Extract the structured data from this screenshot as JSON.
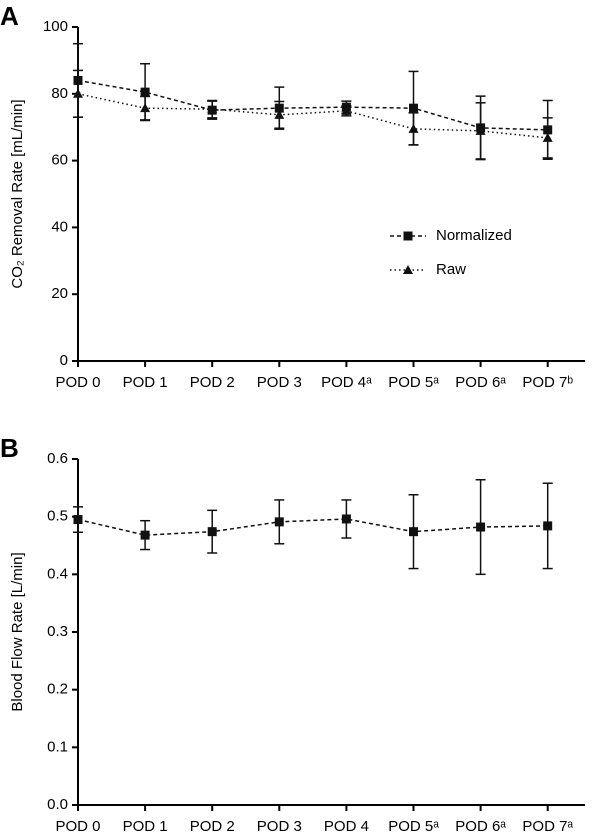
{
  "chart_data": [
    {
      "type": "line",
      "panel_label": "A",
      "ylabel": "CO₂ Removal Rate [mL/min]",
      "categories": [
        "POD 0",
        "POD 1",
        "POD 2",
        "POD 3",
        "POD 4ᵃ",
        "POD 5ᵃ",
        "POD 6ᵃ",
        "POD 7ᵇ"
      ],
      "ylim": [
        0,
        100
      ],
      "yticks": [
        0,
        20,
        40,
        60,
        80,
        100
      ],
      "legend": true,
      "legend_position": "center-right",
      "series": [
        {
          "name": "Normalized",
          "color": "#111111",
          "linestyle": "dashed",
          "marker": "square",
          "values": [
            84,
            80.5,
            75.1,
            75.7,
            76,
            75.7,
            69.8,
            69.2
          ],
          "errors": [
            11,
            8.5,
            2.7,
            6.3,
            1.8,
            11,
            9.5,
            8.8
          ]
        },
        {
          "name": "Raw",
          "color": "#111111",
          "linestyle": "dotted",
          "marker": "triangle",
          "values": [
            80,
            75.7,
            75.4,
            73.7,
            74.9,
            69.5,
            68.9,
            66.8
          ],
          "errors": [
            7,
            3.5,
            2.6,
            4,
            1.5,
            4.8,
            8.4,
            6
          ]
        }
      ]
    },
    {
      "type": "line",
      "panel_label": "B",
      "ylabel": "Blood Flow Rate [L/min]",
      "categories": [
        "POD 0",
        "POD 1",
        "POD 2",
        "POD 3",
        "POD 4",
        "POD 5ᵃ",
        "POD 6ᵃ",
        "POD 7ᵃ"
      ],
      "ylim": [
        0,
        0.6
      ],
      "yticks": [
        {
          "value": 0,
          "label": "0.0"
        },
        0.1,
        0.2,
        0.3,
        0.4,
        0.5,
        0.6
      ],
      "legend": false,
      "series": [
        {
          "color": "#111111",
          "linestyle": "dashed",
          "marker": "square",
          "values": [
            0.495,
            0.468,
            0.474,
            0.491,
            0.496,
            0.474,
            0.482,
            0.484
          ],
          "errors": [
            0.022,
            0.025,
            0.037,
            0.038,
            0.033,
            0.064,
            0.082,
            0.074
          ]
        }
      ]
    }
  ]
}
